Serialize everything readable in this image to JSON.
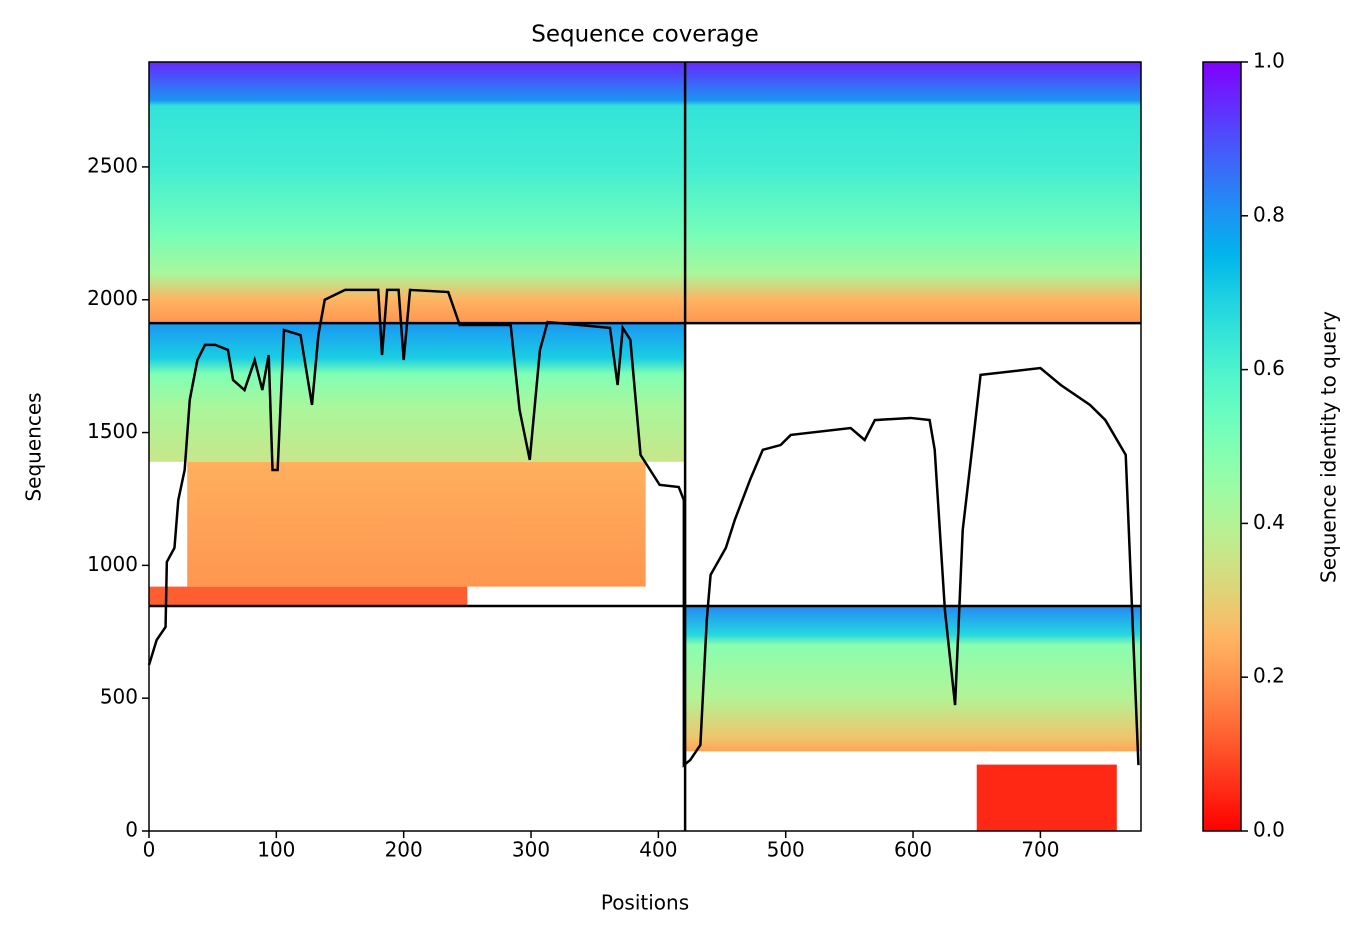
{
  "chart_data": {
    "type": "coverage",
    "title": "Sequence coverage",
    "x_label": "Positions",
    "y_label": "Sequences",
    "colorbar_label": "Sequence identity to query",
    "colormap": "rainbow_r",
    "xlim": [
      0,
      779
    ],
    "xticks": [
      0,
      100,
      200,
      300,
      400,
      500,
      600,
      700
    ],
    "ylim": [
      0,
      2895
    ],
    "yticks": [
      0,
      500,
      1000,
      1500,
      2000,
      2500
    ],
    "clim": [
      0,
      1
    ],
    "cticks": [
      0.0,
      0.2,
      0.4,
      0.6,
      0.8,
      1.0
    ],
    "cticks_labels": [
      "0.0",
      "0.2",
      "0.4",
      "0.6",
      "0.8",
      "1.0"
    ],
    "line_color": "#000000",
    "dividers": {
      "x": [
        421
      ],
      "y": [
        847,
        1912
      ]
    },
    "blocks": [
      {
        "x": [
          0,
          779
        ],
        "y": [
          1912,
          2895
        ],
        "stops": [
          {
            "y": 2895,
            "identity": 0.95
          },
          {
            "y": 2750,
            "identity": 0.8
          },
          {
            "y": 2730,
            "identity": 0.65
          },
          {
            "y": 2500,
            "identity": 0.62
          },
          {
            "y": 2250,
            "identity": 0.52
          },
          {
            "y": 2100,
            "identity": 0.42
          },
          {
            "y": 2000,
            "identity": 0.25
          },
          {
            "y": 1912,
            "identity": 0.2
          }
        ]
      },
      {
        "x": [
          0,
          421
        ],
        "y": [
          1390,
          1912
        ],
        "stops": [
          {
            "y": 1912,
            "identity": 0.8
          },
          {
            "y": 1780,
            "identity": 0.7
          },
          {
            "y": 1720,
            "identity": 0.5
          },
          {
            "y": 1600,
            "identity": 0.42
          },
          {
            "y": 1390,
            "identity": 0.36
          }
        ]
      },
      {
        "x": [
          30,
          390
        ],
        "y": [
          920,
          1390
        ],
        "stops": [
          {
            "y": 1390,
            "identity": 0.24
          },
          {
            "y": 920,
            "identity": 0.2
          }
        ]
      },
      {
        "x": [
          0,
          250
        ],
        "y": [
          847,
          920
        ],
        "stops": [
          {
            "y": 920,
            "identity": 0.12
          },
          {
            "y": 847,
            "identity": 0.12
          }
        ]
      },
      {
        "x": [
          421,
          779
        ],
        "y": [
          300,
          847
        ],
        "stops": [
          {
            "y": 847,
            "identity": 0.82
          },
          {
            "y": 740,
            "identity": 0.68
          },
          {
            "y": 700,
            "identity": 0.48
          },
          {
            "y": 500,
            "identity": 0.4
          },
          {
            "y": 350,
            "identity": 0.28
          },
          {
            "y": 300,
            "identity": 0.22
          }
        ]
      },
      {
        "x": [
          650,
          760
        ],
        "y": [
          0,
          250
        ],
        "stops": [
          {
            "y": 250,
            "identity": 0.05
          },
          {
            "y": 0,
            "identity": 0.05
          }
        ]
      }
    ],
    "coverage": {
      "x": [
        0,
        6,
        13,
        14,
        20,
        23,
        28,
        32,
        38,
        44,
        52,
        62,
        66,
        75,
        83,
        89,
        94,
        97,
        101,
        106,
        119,
        128,
        133,
        138,
        154,
        180,
        183,
        187,
        196,
        200,
        205,
        235,
        244,
        284,
        291,
        299,
        307,
        313,
        362,
        368,
        372,
        378,
        386,
        401,
        416,
        420,
        420,
        425,
        433,
        438,
        441,
        453,
        460,
        472,
        482,
        496,
        504,
        551,
        562,
        570,
        598,
        613,
        617,
        625,
        633,
        639,
        649,
        653,
        700,
        716,
        739,
        751,
        767,
        777
      ],
      "y": [
        625,
        719,
        768,
        1013,
        1066,
        1246,
        1359,
        1623,
        1773,
        1830,
        1830,
        1811,
        1698,
        1660,
        1773,
        1660,
        1792,
        1359,
        1359,
        1886,
        1867,
        1604,
        1867,
        2000,
        2037,
        2037,
        1792,
        2037,
        2037,
        1773,
        2037,
        2029,
        1905,
        1905,
        1585,
        1397,
        1811,
        1916,
        1894,
        1679,
        1894,
        1849,
        1416,
        1303,
        1295,
        1246,
        248,
        267,
        324,
        794,
        964,
        1066,
        1171,
        1322,
        1435,
        1453,
        1491,
        1517,
        1472,
        1547,
        1555,
        1547,
        1435,
        832,
        474,
        1133,
        1547,
        1717,
        1743,
        1679,
        1604,
        1547,
        1416,
        248
      ]
    }
  }
}
